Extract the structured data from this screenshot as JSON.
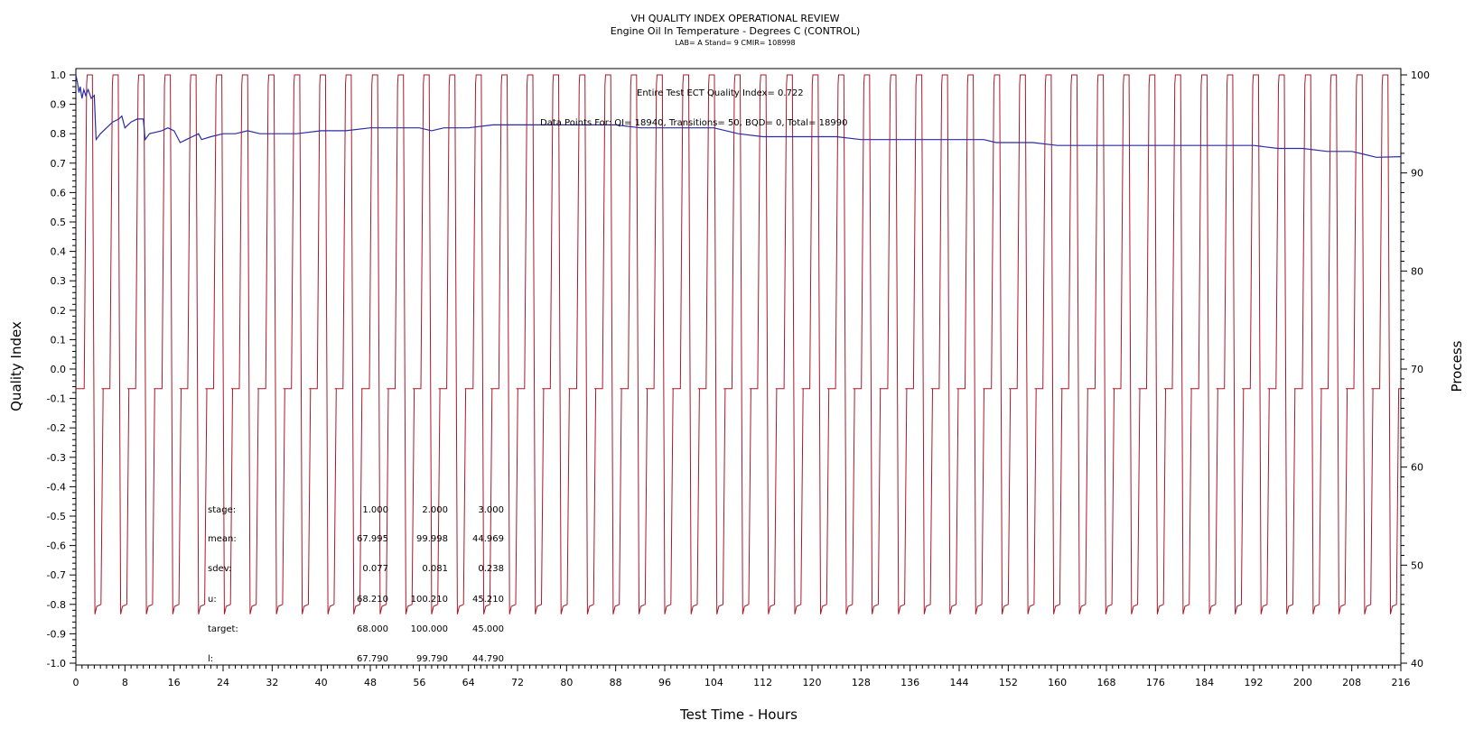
{
  "chart_data": {
    "type": "line",
    "title": "VH QUALITY INDEX OPERATIONAL REVIEW",
    "subtitle": "Engine Oil In Temperature - Degrees C (CONTROL)",
    "subsubtitle": "LAB= A Stand= 9 CMIR= 108998",
    "xlabel": "Test Time - Hours",
    "ylabel": "Quality Index",
    "y2label": "Process",
    "xlim": [
      0,
      216
    ],
    "ylim": [
      -1.0,
      1.0
    ],
    "y2lim": [
      40,
      100
    ],
    "x_ticks": [
      0,
      8,
      16,
      24,
      32,
      40,
      48,
      56,
      64,
      72,
      80,
      88,
      96,
      104,
      112,
      120,
      128,
      136,
      144,
      152,
      160,
      168,
      176,
      184,
      192,
      200,
      208,
      216
    ],
    "y_ticks": [
      "1.0",
      "0.9",
      "0.8",
      "0.7",
      "0.6",
      "0.5",
      "0.4",
      "0.3",
      "0.2",
      "0.1",
      "0.0",
      "-0.1",
      "-0.2",
      "-0.3",
      "-0.4",
      "-0.5",
      "-0.6",
      "-0.7",
      "-0.8",
      "-0.9",
      "-1.0"
    ],
    "y2_ticks": [
      100,
      90,
      80,
      70,
      60,
      50,
      40
    ],
    "annotations": {
      "quality_index": "Entire Test ECT Quality Index=   0.722",
      "data_points": "Data Points For: QI= 18940, Transitions=    50, BQD=      0, Total= 18990"
    },
    "stats_table": {
      "rows": [
        {
          "label": "stage:",
          "values": [
            "1.000",
            "2.000",
            "3.000"
          ]
        },
        {
          "label": "mean:",
          "values": [
            "67.995",
            "99.998",
            "44.969"
          ]
        },
        {
          "label": "sdev:",
          "values": [
            "0.077",
            "0.081",
            "0.238"
          ]
        },
        {
          "label": "u:",
          "values": [
            "68.210",
            "100.210",
            "45.210"
          ]
        },
        {
          "label": "target:",
          "values": [
            "68.000",
            "100.000",
            "45.000"
          ]
        },
        {
          "label": "l:",
          "values": [
            "67.790",
            "99.790",
            "44.790"
          ]
        }
      ]
    },
    "series": [
      {
        "axis": "left",
        "color": "#2b2ba6",
        "points": [
          [
            0,
            1.0
          ],
          [
            0.3,
            0.97
          ],
          [
            0.5,
            0.94
          ],
          [
            0.7,
            0.96
          ],
          [
            1.0,
            0.92
          ],
          [
            1.3,
            0.95
          ],
          [
            1.6,
            0.93
          ],
          [
            2.0,
            0.95
          ],
          [
            2.5,
            0.92
          ],
          [
            3.0,
            0.93
          ],
          [
            3.3,
            0.78
          ],
          [
            4,
            0.8
          ],
          [
            5,
            0.82
          ],
          [
            6,
            0.84
          ],
          [
            7,
            0.85
          ],
          [
            7.5,
            0.86
          ],
          [
            8,
            0.82
          ],
          [
            8.5,
            0.83
          ],
          [
            9,
            0.84
          ],
          [
            10,
            0.85
          ],
          [
            11,
            0.85
          ],
          [
            11.3,
            0.78
          ],
          [
            12,
            0.8
          ],
          [
            14,
            0.81
          ],
          [
            15,
            0.82
          ],
          [
            16,
            0.81
          ],
          [
            17,
            0.77
          ],
          [
            18,
            0.78
          ],
          [
            19,
            0.79
          ],
          [
            20,
            0.8
          ],
          [
            20.5,
            0.78
          ],
          [
            22,
            0.79
          ],
          [
            24,
            0.8
          ],
          [
            26,
            0.8
          ],
          [
            28,
            0.81
          ],
          [
            30,
            0.8
          ],
          [
            32,
            0.8
          ],
          [
            36,
            0.8
          ],
          [
            40,
            0.81
          ],
          [
            44,
            0.81
          ],
          [
            48,
            0.82
          ],
          [
            52,
            0.82
          ],
          [
            56,
            0.82
          ],
          [
            58,
            0.81
          ],
          [
            60,
            0.82
          ],
          [
            64,
            0.82
          ],
          [
            68,
            0.83
          ],
          [
            72,
            0.83
          ],
          [
            76,
            0.83
          ],
          [
            80,
            0.83
          ],
          [
            84,
            0.83
          ],
          [
            88,
            0.83
          ],
          [
            92,
            0.82
          ],
          [
            96,
            0.82
          ],
          [
            100,
            0.82
          ],
          [
            104,
            0.82
          ],
          [
            106,
            0.81
          ],
          [
            108,
            0.8
          ],
          [
            112,
            0.79
          ],
          [
            116,
            0.79
          ],
          [
            120,
            0.79
          ],
          [
            124,
            0.79
          ],
          [
            128,
            0.78
          ],
          [
            132,
            0.78
          ],
          [
            136,
            0.78
          ],
          [
            140,
            0.78
          ],
          [
            144,
            0.78
          ],
          [
            148,
            0.78
          ],
          [
            150,
            0.77
          ],
          [
            152,
            0.77
          ],
          [
            156,
            0.77
          ],
          [
            160,
            0.76
          ],
          [
            164,
            0.76
          ],
          [
            168,
            0.76
          ],
          [
            172,
            0.76
          ],
          [
            176,
            0.76
          ],
          [
            180,
            0.76
          ],
          [
            184,
            0.76
          ],
          [
            188,
            0.76
          ],
          [
            192,
            0.76
          ],
          [
            196,
            0.75
          ],
          [
            200,
            0.75
          ],
          [
            204,
            0.74
          ],
          [
            208,
            0.74
          ],
          [
            210,
            0.73
          ],
          [
            212,
            0.72
          ],
          [
            216,
            0.722
          ]
        ]
      },
      {
        "axis": "right",
        "color": "#a8182a",
        "cycle_starts": [
          0,
          4.2,
          8.4,
          12.7,
          16.9,
          21.1,
          25.3,
          29.6,
          33.8,
          38.0,
          42.2,
          46.5,
          50.7,
          54.9,
          59.1,
          63.4,
          67.6,
          71.8,
          76.0,
          80.3,
          84.5,
          88.7,
          92.9,
          97.2,
          101.4,
          105.6,
          109.8,
          114.1,
          118.3,
          122.5,
          126.7,
          131.0,
          135.2,
          139.4,
          143.6,
          147.9,
          152.1,
          156.3,
          160.5,
          164.8,
          169.0,
          173.2,
          177.4,
          181.7,
          185.9,
          190.1,
          194.3,
          198.6,
          202.8,
          207.0,
          211.2
        ],
        "stage_duration_hours": [
          1.5,
          1.3,
          1.4
        ],
        "stage_levels": [
          68,
          100,
          45
        ]
      }
    ]
  }
}
